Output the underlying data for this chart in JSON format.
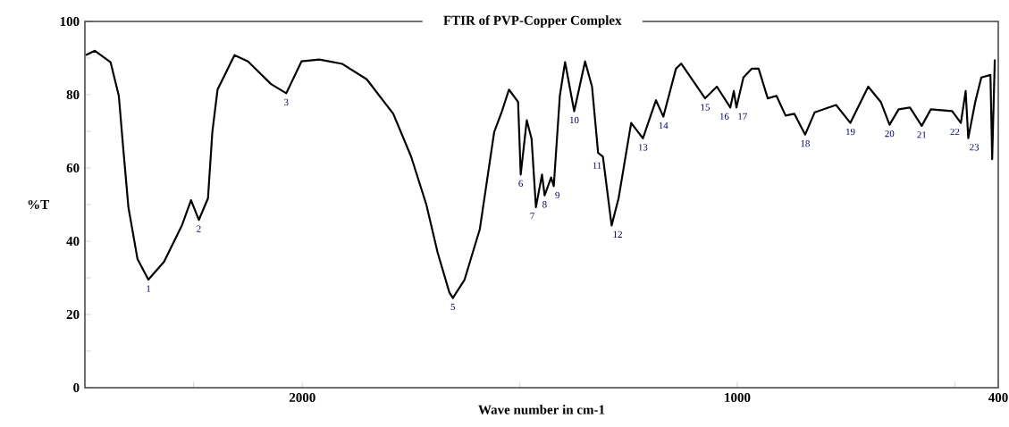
{
  "chart_data": {
    "type": "line",
    "title": "FTIR of PVP-Copper Complex",
    "xlabel": "Wave number in cm-1",
    "ylabel": "%T",
    "x": [
      2498,
      2477,
      2441,
      2422,
      2412,
      2400,
      2379,
      2354,
      2318,
      2277,
      2256,
      2238,
      2217,
      2207,
      2195,
      2156,
      2125,
      2072,
      2037,
      2002,
      1961,
      1908,
      1852,
      1791,
      1750,
      1715,
      1689,
      1662,
      1654,
      1627,
      1592,
      1559,
      1541,
      1525,
      1504,
      1498,
      1484,
      1473,
      1463,
      1449,
      1443,
      1428,
      1422,
      1408,
      1396,
      1375,
      1350,
      1334,
      1320,
      1309,
      1289,
      1273,
      1244,
      1217,
      1187,
      1170,
      1141,
      1129,
      1074,
      1047,
      1016,
      1008,
      1002,
      986,
      967,
      951,
      930,
      910,
      889,
      869,
      844,
      822,
      773,
      740,
      699,
      670,
      650,
      629,
      603,
      576,
      555,
      506,
      486,
      475,
      469,
      453,
      439,
      418,
      414,
      408
    ],
    "series": [
      {
        "color": "#000000",
        "values": [
          90.8,
          92,
          88.9,
          79.7,
          65.6,
          49.3,
          35.1,
          29.5,
          34.4,
          44.3,
          51.2,
          45.8,
          51.7,
          69.8,
          81.4,
          90.8,
          89.1,
          82.9,
          80.4,
          89.1,
          89.6,
          88.4,
          84.2,
          74.8,
          63.1,
          50,
          36.9,
          26,
          24.5,
          29.5,
          43.3,
          69.8,
          75.5,
          81.4,
          78,
          58.2,
          73,
          68,
          49.3,
          58.2,
          52.5,
          57.4,
          55,
          79.7,
          88.9,
          75.5,
          89.1,
          82.2,
          64.1,
          63.1,
          44.3,
          51.7,
          72.3,
          68.1,
          78.5,
          74,
          87.1,
          88.5,
          79,
          82.2,
          76.5,
          81,
          76.5,
          84.7,
          87.1,
          87.1,
          79,
          79.7,
          74.3,
          74.8,
          69.1,
          75.2,
          77.2,
          72.3,
          82.2,
          78,
          71.8,
          76,
          76.5,
          71.5,
          76,
          75.5,
          72.3,
          81,
          68.1,
          78,
          84.7,
          85.4,
          62.4,
          89.6
        ]
      }
    ],
    "xlim": [
      2500,
      400
    ],
    "ylim": [
      0,
      100
    ],
    "xticks": [
      {
        "value": 2250,
        "label": null
      },
      2000,
      {
        "value": 1500,
        "label": null
      },
      1000,
      {
        "value": 500,
        "label": null
      },
      400
    ],
    "yticks": [
      0,
      {
        "value": 10,
        "label": null
      },
      20,
      {
        "value": 30,
        "label": null
      },
      40,
      {
        "value": 50,
        "label": null
      },
      60,
      {
        "value": 70,
        "label": null
      },
      80,
      {
        "value": 90,
        "label": null
      },
      100
    ],
    "annotations": [
      {
        "text": "1",
        "x": 2354,
        "y": 29.5
      },
      {
        "text": "2",
        "x": 2238,
        "y": 45.8
      },
      {
        "text": "3",
        "x": 2037,
        "y": 80.4
      },
      {
        "text": "5",
        "x": 1654,
        "y": 24.5
      },
      {
        "text": "6",
        "x": 1498,
        "y": 58.2
      },
      {
        "text": "7",
        "x": 1463,
        "y": 49.3
      },
      {
        "text": "8",
        "x": 1443,
        "y": 52.5
      },
      {
        "text": "9",
        "x": 1422,
        "y": 55
      },
      {
        "text": "10",
        "x": 1375,
        "y": 75.5
      },
      {
        "text": "11",
        "x": 1309,
        "y": 63.1
      },
      {
        "text": "12",
        "x": 1289,
        "y": 44.3
      },
      {
        "text": "13",
        "x": 1217,
        "y": 68.1
      },
      {
        "text": "14",
        "x": 1170,
        "y": 74
      },
      {
        "text": "15",
        "x": 1074,
        "y": 79
      },
      {
        "text": "16",
        "x": 1016,
        "y": 76.5
      },
      {
        "text": "17",
        "x": 1002,
        "y": 76.5
      },
      {
        "text": "18",
        "x": 844,
        "y": 69.1
      },
      {
        "text": "19",
        "x": 740,
        "y": 72.3
      },
      {
        "text": "20",
        "x": 650,
        "y": 71.8
      },
      {
        "text": "21",
        "x": 576,
        "y": 71.5
      },
      {
        "text": "22",
        "x": 486,
        "y": 72.3
      },
      {
        "text": "23",
        "x": 469,
        "y": 68.1
      }
    ],
    "marker": "none",
    "line_style": "solid"
  }
}
